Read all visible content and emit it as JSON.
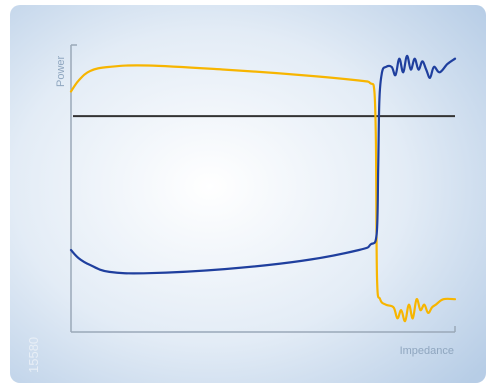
{
  "chart_data": {
    "type": "line",
    "title": "",
    "xlabel": "Impedance",
    "ylabel": "Power",
    "figure_id": "15580",
    "ticks": "none",
    "grid": false,
    "legend": "none",
    "colors": {
      "yellow_series": "#f7b500",
      "blue_series": "#1f3f9e",
      "reference_line": "#333333",
      "axis": "#9aa8b8",
      "background_center": "#ffffff",
      "background_edge": "#b7cde6"
    },
    "series": [
      {
        "color": "#f7b500",
        "points": [
          [
            0,
            0.88
          ],
          [
            2,
            0.92
          ],
          [
            5,
            0.955
          ],
          [
            10,
            0.97
          ],
          [
            20,
            0.975
          ],
          [
            40,
            0.96
          ],
          [
            60,
            0.94
          ],
          [
            75,
            0.92
          ],
          [
            78,
            0.91
          ],
          [
            79,
            0.88
          ],
          [
            79.4,
            0.7
          ],
          [
            79.7,
            0.2
          ],
          [
            80.5,
            0.12
          ],
          [
            82,
            0.1
          ],
          [
            84,
            0.09
          ],
          [
            85,
            0.05
          ],
          [
            86,
            0.08
          ],
          [
            87,
            0.04
          ],
          [
            88,
            0.1
          ],
          [
            89,
            0.05
          ],
          [
            90,
            0.12
          ],
          [
            91,
            0.08
          ],
          [
            92,
            0.1
          ],
          [
            93,
            0.07
          ],
          [
            94,
            0.09
          ],
          [
            95,
            0.1
          ],
          [
            97,
            0.12
          ],
          [
            100,
            0.12
          ]
        ]
      },
      {
        "color": "#1f3f9e",
        "points": [
          [
            0,
            0.3
          ],
          [
            2,
            0.27
          ],
          [
            5,
            0.245
          ],
          [
            10,
            0.22
          ],
          [
            20,
            0.215
          ],
          [
            40,
            0.23
          ],
          [
            60,
            0.26
          ],
          [
            75,
            0.3
          ],
          [
            78,
            0.32
          ],
          [
            79.6,
            0.36
          ],
          [
            80,
            0.6
          ],
          [
            80.3,
            0.85
          ],
          [
            81,
            0.95
          ],
          [
            82,
            0.97
          ],
          [
            83.5,
            0.97
          ],
          [
            84.5,
            0.94
          ],
          [
            85.5,
            1.0
          ],
          [
            86.5,
            0.95
          ],
          [
            87.5,
            1.01
          ],
          [
            88.5,
            0.96
          ],
          [
            89.5,
            1.0
          ],
          [
            90.5,
            0.96
          ],
          [
            91.5,
            0.99
          ],
          [
            92.5,
            0.96
          ],
          [
            93.5,
            0.93
          ],
          [
            94.5,
            0.97
          ],
          [
            96,
            0.95
          ],
          [
            98,
            0.98
          ],
          [
            100,
            1.0
          ]
        ]
      }
    ],
    "reference_lines": [
      {
        "orientation": "horizontal",
        "y": 0.79
      }
    ],
    "xlim": [
      0,
      100
    ],
    "ylim": [
      0,
      1.05
    ]
  }
}
